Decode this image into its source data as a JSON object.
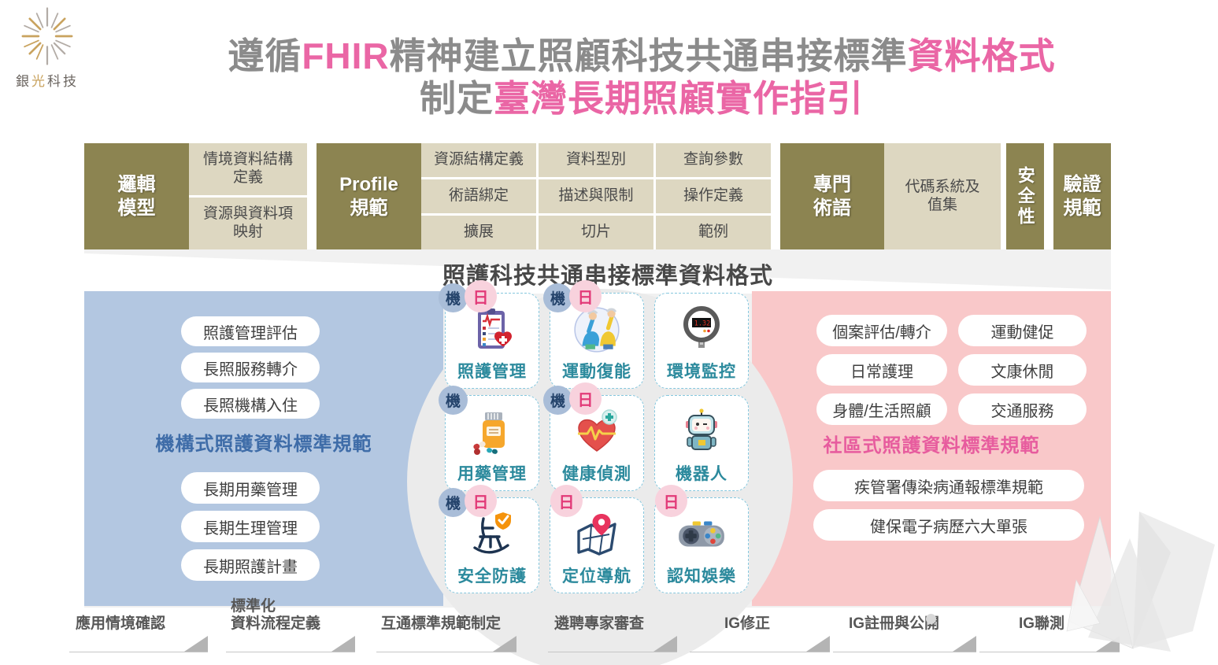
{
  "logo": {
    "name_part1": "銀",
    "name_part2": "光",
    "name_part3": "科技"
  },
  "title": {
    "l1s1": "遵循",
    "l1s2": "FHIR",
    "l1s3": "精神建立照顧科技共通串接標準",
    "l1s4": "資料格式",
    "l2s1": "制定",
    "l2s2": "臺灣長期照顧實作指引"
  },
  "colors": {
    "accent_pink": "#ea66a5",
    "olive_dark": "#8c8451",
    "olive_light": "#ddd7c1",
    "blue_panel": "#b3c7e1",
    "pink_panel": "#f9c8c9",
    "teal_label": "#2c8a9d",
    "blue_title": "#3e6ca8",
    "pink_title": "#e75c9e"
  },
  "framework": {
    "logic": {
      "head": "邏輯\n模型",
      "cells": [
        "情境資料結構\n定義",
        "資源與資料項\n映射"
      ]
    },
    "profile": {
      "head": "Profile\n規範",
      "cells": [
        [
          "資源結構定義",
          "資料型別",
          "查詢參數"
        ],
        [
          "術語綁定",
          "描述與限制",
          "操作定義"
        ],
        [
          "擴展",
          "切片",
          "範例"
        ]
      ]
    },
    "terminology": {
      "head": "專門\n術語",
      "cell": "代碼系統及\n值集"
    },
    "security": "安全性",
    "validation": "驗證\n規範"
  },
  "subtitle": "照護科技共通串接標準資料格式",
  "left_panel": {
    "pills_top": [
      "照護管理評估",
      "長照服務轉介",
      "長照機構入住"
    ],
    "title": "機構式照護資料標準規範",
    "pills_bottom": [
      "長期用藥管理",
      "長期生理管理",
      "長期照護計畫"
    ]
  },
  "right_panel": {
    "pills_col1": [
      "個案評估/轉介",
      "日常護理",
      "身體/生活照顧"
    ],
    "pills_col2": [
      "運動健促",
      "文康休閒",
      "交通服務"
    ],
    "title": "社區式照護資料標準規範",
    "pills_wide": [
      "疾管署傳染病通報標準規範",
      "健保電子病歷六大單張"
    ]
  },
  "badge_legend": {
    "institution": "機",
    "daily": "日"
  },
  "cards": [
    {
      "label": "照護管理",
      "badges": [
        "機",
        "日"
      ],
      "icon": "clipboard-heart"
    },
    {
      "label": "運動復能",
      "badges": [
        "機",
        "日"
      ],
      "icon": "exercise-people"
    },
    {
      "label": "環境監控",
      "badges": [],
      "icon": "gauge",
      "gauge_value": "1.32"
    },
    {
      "label": "用藥管理",
      "badges": [
        "機"
      ],
      "icon": "medicine-bottle"
    },
    {
      "label": "健康偵測",
      "badges": [
        "機",
        "日"
      ],
      "icon": "heart-pulse"
    },
    {
      "label": "機器人",
      "badges": [],
      "icon": "robot"
    },
    {
      "label": "安全防護",
      "badges": [
        "機",
        "日"
      ],
      "icon": "rocking-chair-shield"
    },
    {
      "label": "定位導航",
      "badges": [
        "日"
      ],
      "icon": "map-pin"
    },
    {
      "label": "認知娛樂",
      "badges": [
        "日"
      ],
      "icon": "game-controller"
    }
  ],
  "process_steps": [
    "應用情境確認",
    "標準化\n資料流程定義",
    "互通標準規範制定",
    "遴聘專家審查",
    "IG修正",
    "IG註冊與公開",
    "IG聯測"
  ]
}
